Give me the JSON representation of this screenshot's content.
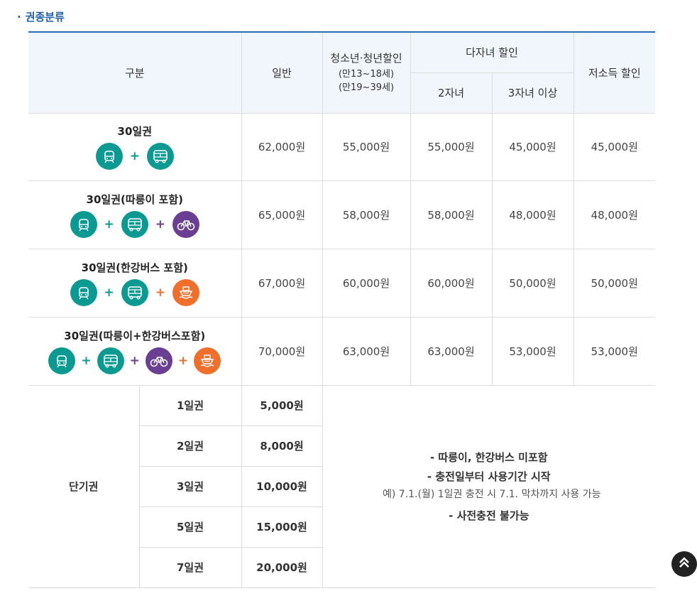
{
  "section": {
    "bullet": "·",
    "title": "권종분류"
  },
  "header": {
    "category": "구분",
    "general": "일반",
    "youth": {
      "title": "청소년·청년할인",
      "line1": "(만13~18세)",
      "line2": "(만19~39세)"
    },
    "multi_child": {
      "title": "다자녀 할인",
      "two": "2자녀",
      "three": "3자녀 이상"
    },
    "low_income": "저소득 할인"
  },
  "passes": [
    {
      "name": "30일권",
      "icons": [
        "subway-icon",
        "bus-icon"
      ],
      "prices": [
        "62,000원",
        "55,000원",
        "55,000원",
        "45,000원",
        "45,000원"
      ]
    },
    {
      "name": "30일권(따릉이 포함)",
      "icons": [
        "subway-icon",
        "bus-icon",
        "bicycle-icon"
      ],
      "prices": [
        "65,000원",
        "58,000원",
        "58,000원",
        "48,000원",
        "48,000원"
      ]
    },
    {
      "name": "30일권(한강버스 포함)",
      "icons": [
        "subway-icon",
        "bus-icon",
        "ferry-icon"
      ],
      "prices": [
        "67,000원",
        "60,000원",
        "60,000원",
        "50,000원",
        "50,000원"
      ]
    },
    {
      "name": "30일권(따릉이+한강버스포함)",
      "icons": [
        "subway-icon",
        "bus-icon",
        "bicycle-icon",
        "ferry-icon"
      ],
      "prices": [
        "70,000원",
        "63,000원",
        "63,000원",
        "53,000원",
        "53,000원"
      ]
    }
  ],
  "short_term": {
    "label": "단기권",
    "rows": [
      {
        "day": "1일권",
        "price": "5,000원"
      },
      {
        "day": "2일권",
        "price": "8,000원"
      },
      {
        "day": "3일권",
        "price": "10,000원"
      },
      {
        "day": "5일권",
        "price": "15,000원"
      },
      {
        "day": "7일권",
        "price": "20,000원"
      }
    ],
    "notes": [
      "- 따릉이, 한강버스 미포함",
      "- 충전일부터 사용기간 시작",
      "예) 7.1.(월) 1일권 충전 시 7.1. 막차까지 사용 가능",
      "- 사전충전 불가능"
    ]
  },
  "plus_sign": "+",
  "colors": {
    "teal": "#0b9a92",
    "purple": "#6a3f93",
    "orange": "#ef6f2b",
    "header_bg": "#f1f6fc",
    "accent": "#2c6bb3"
  },
  "scroll_top_icon": "double-chevron-up-icon"
}
